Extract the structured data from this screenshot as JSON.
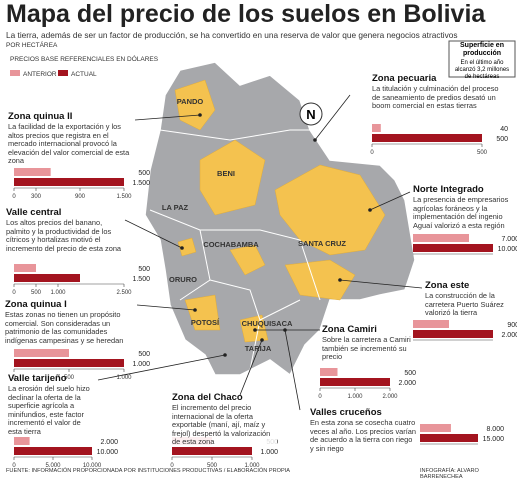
{
  "header": {
    "title": "Mapa del precio de los suelos en Bolivia",
    "subtitle": "La tierra, además de ser un factor de producción, se ha convertido en una reserva de valor que genera negocios atractivos",
    "unit": "POR HECTÁREA",
    "legend_title": "PRECIOS  BASE  REFERENCIALES EN DÓLARES"
  },
  "legend": [
    {
      "name": "ANTERIOR",
      "color": "#e8959a"
    },
    {
      "name": "ACTUAL",
      "color": "#a3141f"
    }
  ],
  "surface_box": {
    "title": "Superficie en producción",
    "text": "En el último año alcanzó 3,2 millones de hectáreas"
  },
  "map_labels": [
    "PANDO",
    "BENI",
    "LA PAZ",
    "COCHABAMBA",
    "SANTA CRUZ",
    "ORURO",
    "POTOSÍ",
    "CHUQUISACA",
    "TARIJA"
  ],
  "compass": "N",
  "footer": {
    "source": "FUENTE: INFORMACIÓN PROPORCIONADA POR INSTITUCIONES PRODUCTIVAS / ELABORACIÓN PROPIA",
    "credit": "INFOGRAFÍA:  ALVARO  BARRENECHEA"
  },
  "chart_data": [
    {
      "type": "bar",
      "title": "Zona pecuaria",
      "text": "La titulación y culminación del proceso de saneamiento de predios desató un boom comercial en estas tierras",
      "values": [
        40,
        500
      ],
      "xlim": [
        0,
        500
      ],
      "xticks": [
        0,
        500
      ]
    },
    {
      "type": "bar",
      "title": "Zona quinua II",
      "text": "La facilidad de la exportación y los altos precios que registra en el mercado internacional provocó la elevación del valor comercial de esta zona",
      "values": [
        500,
        1500
      ],
      "value_labels": [
        "500",
        "1.500"
      ],
      "xlim": [
        0,
        1500
      ],
      "xticks": [
        0,
        300,
        900,
        {
          "value": 1500,
          "label": "1.500"
        }
      ]
    },
    {
      "type": "bar",
      "title": "Valle central",
      "text": "Los altos precios del banano, palmito y la productividad de los cítricos y hortalizas motivó el incremento del precio de esta zona",
      "values": [
        500,
        1500
      ],
      "value_labels": [
        "500",
        "1.500"
      ],
      "xlim": [
        0,
        2500
      ],
      "xticks": [
        0,
        500,
        {
          "value": 1000,
          "label": "1.000"
        },
        {
          "value": 2500,
          "label": "2.500"
        }
      ]
    },
    {
      "type": "bar",
      "title": "Norte Integrado",
      "text": "La presencia de empresarios agrícolas foráneos y la implementación del ingenio Aguaí valorizó a esta región",
      "values": [
        7000,
        10000
      ],
      "value_labels": [
        "7.000",
        "10.000"
      ],
      "xlim": [
        0,
        10000
      ]
    },
    {
      "type": "bar",
      "title": "Zona este",
      "text": "La construcción de la carretera Puerto Suárez valorizó la tierra",
      "values": [
        900,
        2000
      ],
      "value_labels": [
        "900",
        "2.000"
      ],
      "xlim": [
        0,
        2000
      ]
    },
    {
      "type": "bar",
      "title": "Zona quinua I",
      "text": "Estas zonas no tienen un propósito comercial. Son consideradas un patrimonio de las comunidades indígenas campesinas y se heredan",
      "values": [
        500,
        1000
      ],
      "value_labels": [
        "500",
        "1.000"
      ],
      "xlim": [
        0,
        1000
      ],
      "xticks": [
        0,
        500,
        {
          "value": 1000,
          "label": "1.000"
        }
      ]
    },
    {
      "type": "bar",
      "title": "Zona Camiri",
      "text": "Sobre la carretera a Camiri también se incrementó su precio",
      "values": [
        500,
        2000
      ],
      "value_labels": [
        "500",
        "2.000"
      ],
      "xlim": [
        0,
        2000
      ],
      "xticks": [
        0,
        {
          "value": 1000,
          "label": "1.000"
        },
        {
          "value": 2000,
          "label": "2.000"
        }
      ]
    },
    {
      "type": "bar",
      "title": "Valle tarijeño",
      "text": "La erosión del suelo hizo declinar la oferta de la superficie agrícola a minifundios, este factor incrementó el valor de esta tierra",
      "values": [
        2000,
        10000
      ],
      "value_labels": [
        "2.000",
        "10.000"
      ],
      "xlim": [
        0,
        10000
      ],
      "xticks": [
        0,
        {
          "value": 5000,
          "label": "5.000"
        },
        {
          "value": 10000,
          "label": "10.000"
        }
      ]
    },
    {
      "type": "bar",
      "title": "Zona del Chaco",
      "text": "El incremento del precio internacional de la oferta exportable (maní, ají, maíz y frejol) despertó la valorización de esta zona",
      "values": [
        500,
        1000
      ],
      "value_labels": [
        "500",
        "1.000"
      ],
      "xlim": [
        0,
        1000
      ],
      "xticks": [
        0,
        500,
        {
          "value": 1000,
          "label": "1.000"
        }
      ]
    },
    {
      "type": "bar",
      "title": "Valles cruceños",
      "text": "En esta zona se cosecha cuatro veces al año. Los precios varían de acuerdo a la tierra con riego y sin riego",
      "values": [
        8000,
        15000
      ],
      "value_labels": [
        "8.000",
        "15.000"
      ],
      "xlim": [
        0,
        15000
      ]
    }
  ]
}
